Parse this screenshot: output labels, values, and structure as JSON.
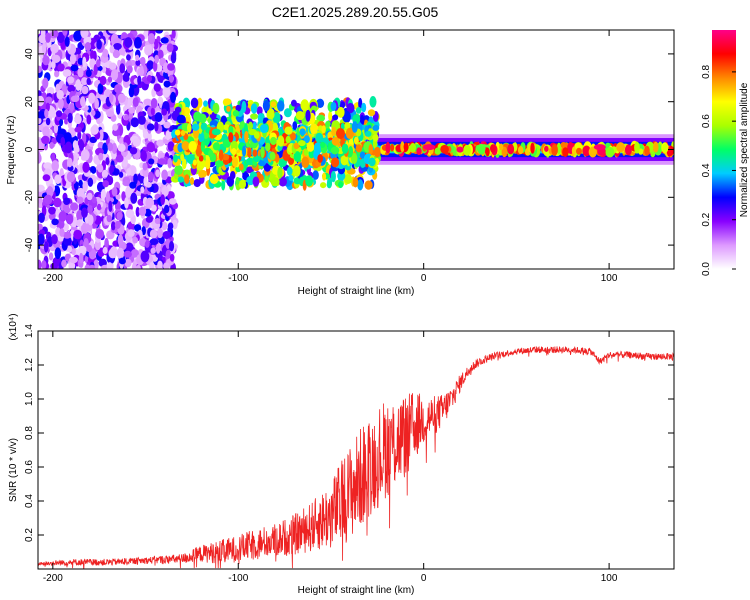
{
  "figure": {
    "title": "C2E1.2025.289.20.55.G05"
  },
  "colors": {
    "line": "#ee2222",
    "axis": "#000000",
    "bg": "#ffffff"
  },
  "chart_data": [
    {
      "type": "heatmap",
      "name": "spectrogram",
      "xlabel": "Height of straight line (km)",
      "ylabel": "Frequency (Hz)",
      "xlim": [
        -208,
        135
      ],
      "ylim": [
        -50,
        50
      ],
      "xticks": [
        -200,
        -100,
        0,
        100
      ],
      "xticklabels": [
        "-200",
        "-100",
        "0",
        "100"
      ],
      "yticks": [
        -40,
        -20,
        0,
        20,
        40
      ],
      "yticklabels": [
        "-40",
        "-20",
        "0",
        "20",
        "40"
      ],
      "colorbar": {
        "label": "Normalized spectral amplitude",
        "range": [
          0.0,
          0.97
        ],
        "ticks": [
          0.0,
          0.2,
          0.4,
          0.6,
          0.8
        ],
        "ticklabels": [
          "0.0",
          "0.2",
          "0.4",
          "0.6",
          "0.8"
        ],
        "colormap": [
          "#ffffff",
          "#dd99ff",
          "#8800ff",
          "#0000ff",
          "#00ccff",
          "#00ff66",
          "#aaff00",
          "#ffff00",
          "#ff8800",
          "#ff0000",
          "#ff0088"
        ]
      },
      "regions": [
        {
          "x": [
            -208,
            -134
          ],
          "f": [
            -50,
            50
          ],
          "amp": [
            0.05,
            0.3
          ],
          "description": "noise"
        },
        {
          "x": [
            -134,
            -25
          ],
          "f": [
            -15,
            20
          ],
          "amp": [
            0.2,
            0.8
          ],
          "description": "broadband signal"
        },
        {
          "x": [
            -25,
            135
          ],
          "f": [
            -2,
            2
          ],
          "amp": [
            0.4,
            0.95
          ],
          "description": "carrier line"
        }
      ],
      "hotspots": [
        {
          "x": 3,
          "f": 1,
          "amp": 0.95
        },
        {
          "x": 95,
          "f": 1,
          "amp": 0.95
        }
      ]
    },
    {
      "type": "line",
      "name": "snr",
      "xlabel": "Height of straight line (km)",
      "ylabel": "SNR (10 * v/v)",
      "yscale_label": "(x10⁴)",
      "xlim": [
        -208,
        135
      ],
      "ylim": [
        0,
        1.4
      ],
      "xticks": [
        -200,
        -100,
        0,
        100
      ],
      "xticklabels": [
        "-200",
        "-100",
        "0",
        "100"
      ],
      "yticks": [
        0.2,
        0.4,
        0.6,
        0.8,
        1.0,
        1.2,
        1.4
      ],
      "yticklabels": [
        "0.2",
        "0.4",
        "0.6",
        "0.8",
        "1.0",
        "1.2",
        "1.4"
      ],
      "series": [
        {
          "name": "SNR",
          "x": [
            -208,
            -190,
            -170,
            -150,
            -130,
            -120,
            -110,
            -100,
            -90,
            -80,
            -70,
            -60,
            -50,
            -45,
            -40,
            -35,
            -30,
            -25,
            -20,
            -15,
            -10,
            -5,
            0,
            5,
            10,
            15,
            20,
            25,
            30,
            40,
            50,
            60,
            70,
            80,
            90,
            95,
            100,
            110,
            120,
            135
          ],
          "y": [
            0.03,
            0.04,
            0.04,
            0.05,
            0.06,
            0.09,
            0.1,
            0.12,
            0.15,
            0.17,
            0.2,
            0.25,
            0.32,
            0.38,
            0.45,
            0.52,
            0.6,
            0.65,
            0.72,
            0.75,
            0.78,
            0.85,
            0.88,
            0.9,
            0.93,
            1.0,
            1.1,
            1.18,
            1.22,
            1.26,
            1.28,
            1.29,
            1.29,
            1.29,
            1.28,
            1.22,
            1.26,
            1.26,
            1.25,
            1.25
          ],
          "noise": [
            0.01,
            0.02,
            0.02,
            0.02,
            0.03,
            0.05,
            0.07,
            0.08,
            0.09,
            0.1,
            0.12,
            0.15,
            0.2,
            0.25,
            0.28,
            0.3,
            0.3,
            0.3,
            0.3,
            0.28,
            0.25,
            0.2,
            0.15,
            0.12,
            0.1,
            0.08,
            0.05,
            0.03,
            0.025,
            0.02,
            0.02,
            0.02,
            0.02,
            0.02,
            0.02,
            0.02,
            0.02,
            0.02,
            0.02,
            0.02
          ]
        }
      ]
    }
  ]
}
